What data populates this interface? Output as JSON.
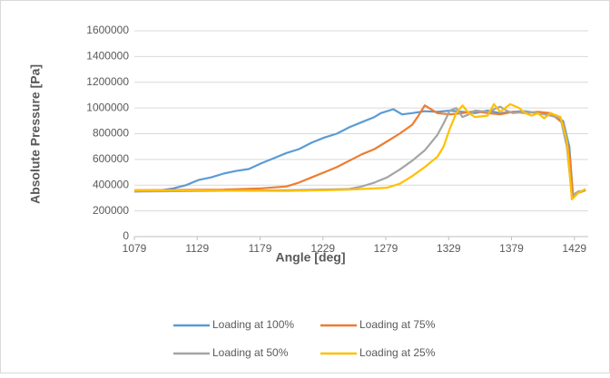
{
  "chart_data": {
    "type": "line",
    "xlabel": "Angle [deg]",
    "ylabel": "Absolute Pressure [Pa]",
    "xlim": [
      1079,
      1440
    ],
    "xticks": [
      1079,
      1129,
      1179,
      1229,
      1279,
      1329,
      1379,
      1429
    ],
    "ylim": [
      0,
      1600000
    ],
    "yticks": [
      0,
      200000,
      400000,
      600000,
      800000,
      1000000,
      1200000,
      1400000,
      1600000
    ],
    "grid": true,
    "legend": "bottom",
    "series": [
      {
        "name": "Loading at 100%",
        "color": "#5b9bd5",
        "x": [
          1079,
          1100,
          1110,
          1120,
          1130,
          1140,
          1150,
          1160,
          1170,
          1180,
          1190,
          1200,
          1210,
          1220,
          1230,
          1240,
          1250,
          1260,
          1270,
          1275,
          1285,
          1292,
          1300,
          1310,
          1320,
          1330,
          1340,
          1350,
          1360,
          1370,
          1380,
          1390,
          1400,
          1410,
          1420,
          1425,
          1428,
          1432,
          1438
        ],
        "values": [
          350000,
          360000,
          375000,
          400000,
          440000,
          460000,
          490000,
          510000,
          525000,
          570000,
          610000,
          650000,
          680000,
          730000,
          770000,
          800000,
          850000,
          890000,
          930000,
          960000,
          990000,
          950000,
          960000,
          975000,
          970000,
          980000,
          970000,
          960000,
          980000,
          960000,
          970000,
          975000,
          960000,
          950000,
          900000,
          700000,
          300000,
          350000,
          360000
        ]
      },
      {
        "name": "Loading at 75%",
        "color": "#ed7d31",
        "x": [
          1079,
          1150,
          1180,
          1200,
          1210,
          1220,
          1230,
          1240,
          1250,
          1260,
          1270,
          1280,
          1290,
          1300,
          1305,
          1310,
          1315,
          1320,
          1330,
          1340,
          1350,
          1360,
          1370,
          1380,
          1390,
          1400,
          1410,
          1420,
          1425,
          1428,
          1432,
          1438
        ],
        "values": [
          360000,
          365000,
          375000,
          390000,
          420000,
          460000,
          500000,
          540000,
          590000,
          640000,
          680000,
          740000,
          800000,
          870000,
          940000,
          1020000,
          990000,
          960000,
          950000,
          960000,
          975000,
          960000,
          950000,
          970000,
          960000,
          970000,
          960000,
          880000,
          650000,
          300000,
          340000,
          360000
        ]
      },
      {
        "name": "Loading at 50%",
        "color": "#a5a5a5",
        "x": [
          1079,
          1200,
          1250,
          1260,
          1270,
          1280,
          1290,
          1300,
          1310,
          1320,
          1325,
          1330,
          1335,
          1340,
          1345,
          1350,
          1360,
          1370,
          1375,
          1380,
          1390,
          1400,
          1410,
          1418,
          1423,
          1427,
          1432,
          1438
        ],
        "values": [
          350000,
          360000,
          370000,
          390000,
          420000,
          460000,
          520000,
          590000,
          670000,
          790000,
          880000,
          980000,
          1000000,
          930000,
          950000,
          980000,
          970000,
          1010000,
          980000,
          960000,
          970000,
          960000,
          940000,
          920000,
          700000,
          320000,
          350000,
          360000
        ]
      },
      {
        "name": "Loading at 25%",
        "color": "#ffc000",
        "x": [
          1079,
          1200,
          1250,
          1280,
          1290,
          1300,
          1310,
          1320,
          1325,
          1330,
          1335,
          1340,
          1345,
          1350,
          1360,
          1365,
          1370,
          1378,
          1385,
          1390,
          1395,
          1400,
          1405,
          1410,
          1418,
          1423,
          1427,
          1432,
          1438
        ],
        "values": [
          360000,
          355000,
          365000,
          380000,
          410000,
          470000,
          540000,
          620000,
          700000,
          840000,
          960000,
          1020000,
          960000,
          930000,
          940000,
          1030000,
          970000,
          1030000,
          1000000,
          960000,
          940000,
          960000,
          920000,
          960000,
          930000,
          750000,
          290000,
          340000,
          370000
        ]
      }
    ]
  }
}
